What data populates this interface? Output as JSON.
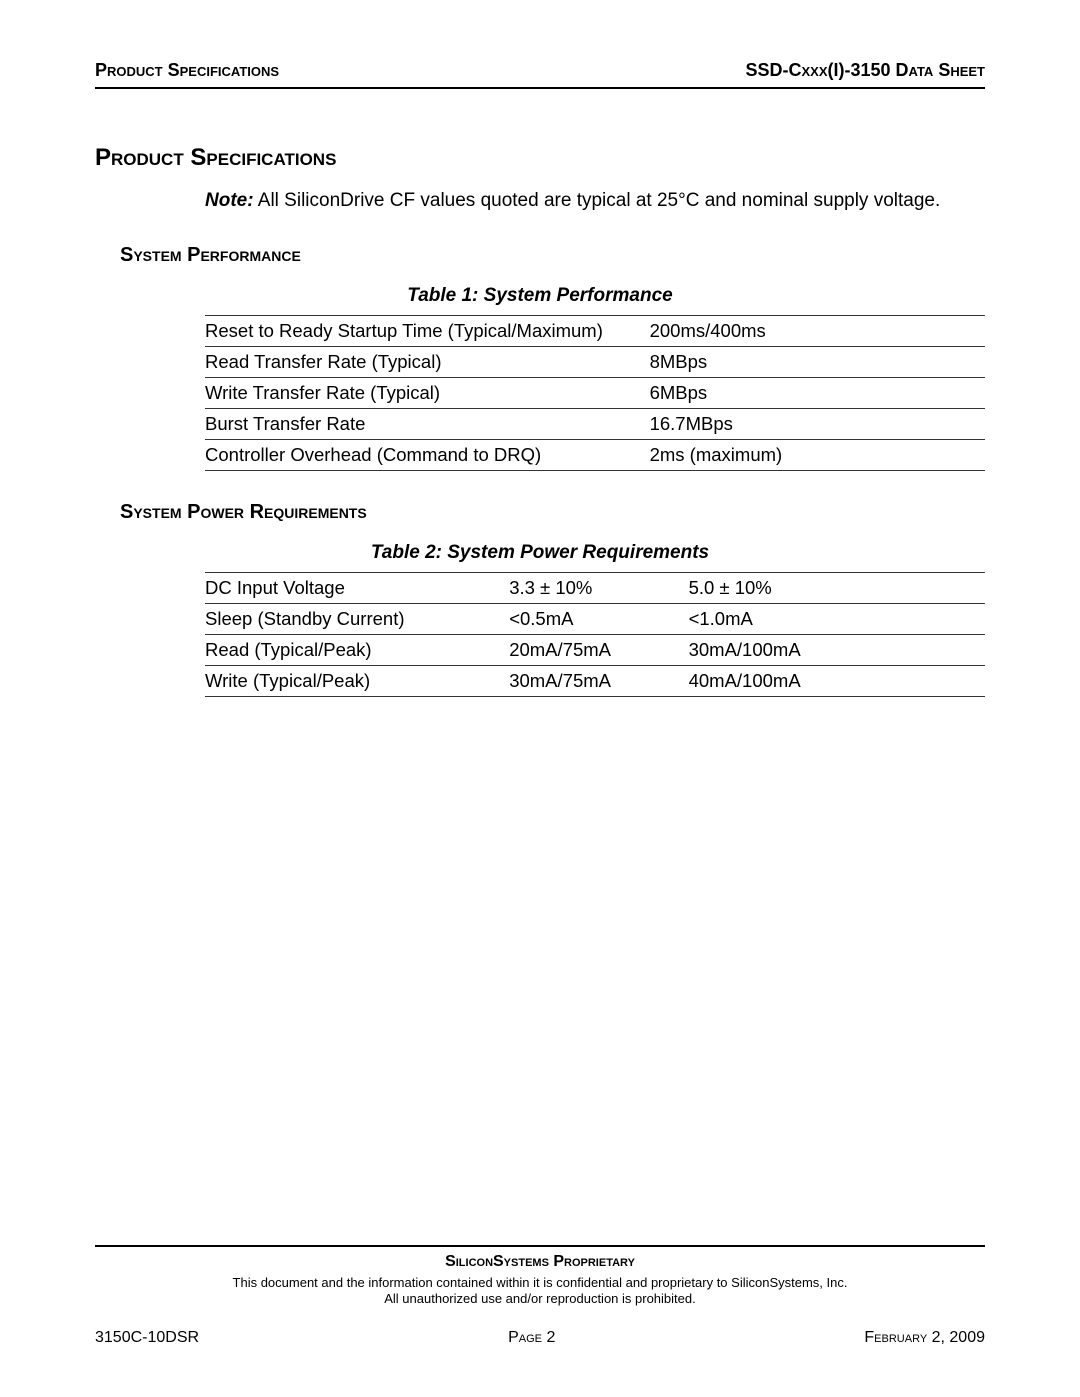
{
  "header": {
    "left": "Product Specifications",
    "right": "SSD-Cxxx(I)-3150 Data Sheet"
  },
  "page_title": "Product Specifications",
  "note": {
    "label": "Note:",
    "text": " All SiliconDrive CF values quoted are typical at 25°C and nominal supply voltage."
  },
  "section1": {
    "title": "System Performance",
    "table_caption": "Table 1:  System Performance",
    "type": "table",
    "column_widths": [
      "57%",
      "43%"
    ],
    "rows": [
      [
        "Reset to Ready Startup Time (Typical/Maximum)",
        "200ms/400ms"
      ],
      [
        "Read Transfer Rate (Typical)",
        "8MBps"
      ],
      [
        "Write Transfer Rate (Typical)",
        "6MBps"
      ],
      [
        "Burst Transfer Rate",
        "16.7MBps"
      ],
      [
        "Controller Overhead (Command to DRQ)",
        "2ms (maximum)"
      ]
    ]
  },
  "section2": {
    "title": "System Power Requirements",
    "table_caption": "Table 2:  System Power Requirements",
    "type": "table",
    "column_widths": [
      "39%",
      "23%",
      "38%"
    ],
    "rows": [
      [
        "DC Input Voltage",
        "3.3 ± 10%",
        "5.0 ± 10%"
      ],
      [
        "Sleep (Standby Current)",
        "<0.5mA",
        "<1.0mA"
      ],
      [
        "Read (Typical/Peak)",
        "20mA/75mA",
        "30mA/100mA"
      ],
      [
        "Write (Typical/Peak)",
        "30mA/75mA",
        "40mA/100mA"
      ]
    ]
  },
  "footer": {
    "proprietary_title": "SiliconSystems Proprietary",
    "proprietary_line1": "This document and the information contained within it is confidential and proprietary to SiliconSystems, Inc.",
    "proprietary_line2": "All unauthorized use and/or reproduction is prohibited.",
    "left": "3150C-10DSR",
    "center": "Page 2",
    "right": "February 2, 2009"
  },
  "colors": {
    "text": "#000000",
    "background": "#ffffff",
    "rule": "#000000",
    "table_border": "#333333"
  },
  "typography": {
    "body_font": "Arial",
    "base_size_pt": 14,
    "title_size_pt": 18,
    "section_size_pt": 15,
    "footer_small_pt": 10
  }
}
